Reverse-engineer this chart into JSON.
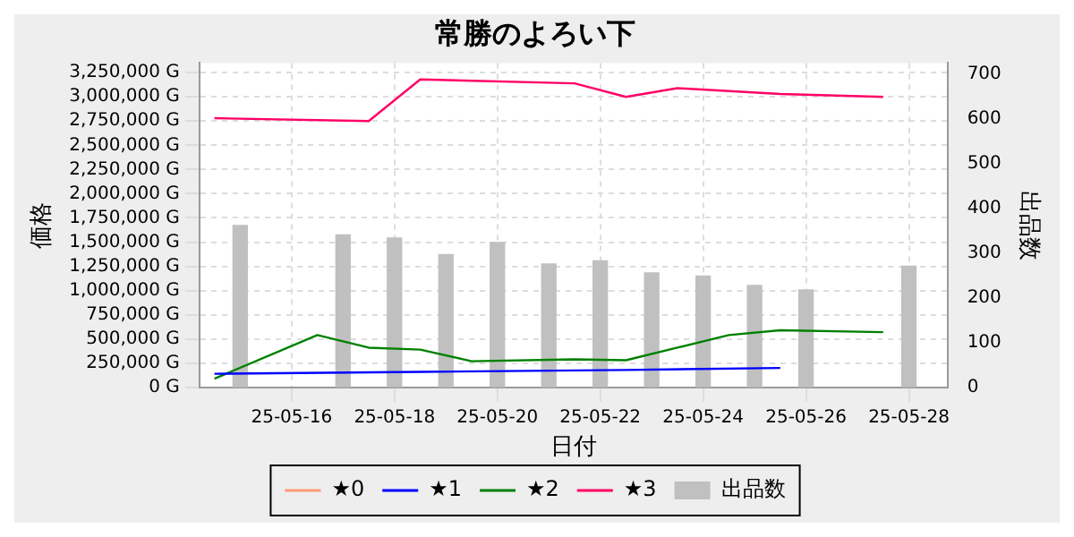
{
  "chart_data": {
    "type": "line",
    "title": "常勝のよろい下",
    "xlabel": "日付",
    "ylabel": "価格",
    "y2label": "出品数",
    "xlim": [
      "--05-14T05:00",
      "--05-28T18:00"
    ],
    "xticks": [
      {
        "value": "--05-16",
        "label": "25-05-16"
      },
      {
        "value": "--05-18",
        "label": "25-05-18"
      },
      {
        "value": "--05-20",
        "label": "25-05-20"
      },
      {
        "value": "--05-22",
        "label": "25-05-22"
      },
      {
        "value": "--05-24",
        "label": "25-05-24"
      },
      {
        "value": "--05-26",
        "label": "25-05-26"
      },
      {
        "value": "--05-28",
        "label": "25-05-28"
      }
    ],
    "ylim": [
      0,
      3350000
    ],
    "yticks": [
      {
        "value": 0,
        "label": "0 G"
      },
      {
        "value": 250000,
        "label": "250,000 G"
      },
      {
        "value": 500000,
        "label": "500,000 G"
      },
      {
        "value": 750000,
        "label": "750,000 G"
      },
      {
        "value": 1000000,
        "label": "1,000,000 G"
      },
      {
        "value": 1250000,
        "label": "1,250,000 G"
      },
      {
        "value": 1500000,
        "label": "1,500,000 G"
      },
      {
        "value": 1750000,
        "label": "1,750,000 G"
      },
      {
        "value": 2000000,
        "label": "2,000,000 G"
      },
      {
        "value": 2250000,
        "label": "2,250,000 G"
      },
      {
        "value": 2500000,
        "label": "2,500,000 G"
      },
      {
        "value": 2750000,
        "label": "2,750,000 G"
      },
      {
        "value": 3000000,
        "label": "3,000,000 G"
      },
      {
        "value": 3250000,
        "label": "3,250,000 G"
      }
    ],
    "y2lim": [
      0,
      725
    ],
    "y2ticks": [
      0,
      100,
      200,
      300,
      400,
      500,
      600,
      700
    ],
    "grid": true,
    "legend": "bottom",
    "line_style": "solid",
    "marker": "none",
    "series": [
      {
        "name": "★0",
        "color": "#ff9977"
      },
      {
        "name": "★1",
        "color": "#0000ff",
        "x": [
          "--05-14T12:00",
          "--05-18T12:00",
          "--05-22T12:00",
          "--05-25T12:00"
        ],
        "values": [
          140000,
          160000,
          180000,
          200000
        ]
      },
      {
        "name": "★2",
        "color": "#008000",
        "x": [
          "--05-14T12:00",
          "--05-16T12:00",
          "--05-17T12:00",
          "--05-18T12:00",
          "--05-19T12:00",
          "--05-21T12:00",
          "--05-22T12:00",
          "--05-23T12:00",
          "--05-24T12:00",
          "--05-25T12:00",
          "--05-27T12:00"
        ],
        "values": [
          90000,
          540000,
          410000,
          390000,
          270000,
          290000,
          280000,
          410000,
          540000,
          590000,
          570000
        ]
      },
      {
        "name": "★3",
        "color": "#ff0066",
        "x": [
          "--05-14T12:00",
          "--05-17T12:00",
          "--05-18T12:00",
          "--05-21T12:00",
          "--05-22T12:00",
          "--05-23T12:00",
          "--05-25T12:00",
          "--05-27T12:00"
        ],
        "values": [
          2780000,
          2750000,
          3180000,
          3140000,
          3000000,
          3090000,
          3030000,
          3000000
        ]
      },
      {
        "name": "出品数",
        "type": "bar",
        "axis": "y2",
        "color": "#c0c0c0",
        "x": [
          "--05-15",
          "--05-17",
          "--05-18",
          "--05-19",
          "--05-20",
          "--05-21",
          "--05-22",
          "--05-23",
          "--05-24",
          "--05-25",
          "--05-26",
          "--05-28"
        ],
        "values": [
          362,
          341,
          334,
          297,
          324,
          276,
          283,
          256,
          249,
          228,
          218,
          271
        ]
      }
    ]
  }
}
